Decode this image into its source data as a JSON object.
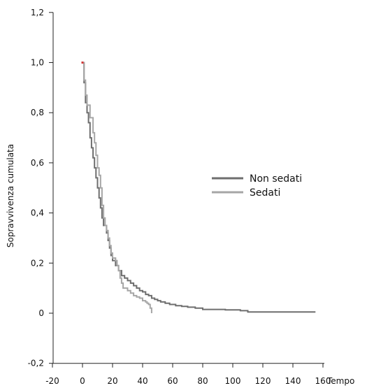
{
  "chart_data": {
    "type": "line",
    "title": "",
    "xlabel": "Tempo",
    "ylabel": "Sopravvivenza cumulata",
    "xlim": [
      -20,
      160
    ],
    "ylim": [
      -0.2,
      1.2
    ],
    "xticks": [
      "-20",
      "0",
      "20",
      "40",
      "60",
      "80",
      "100",
      "120",
      "140",
      "160"
    ],
    "yticks": [
      "-0,2",
      "0",
      "0,2",
      "0,4",
      "0,6",
      "0,8",
      "1,0",
      "1,2"
    ],
    "grid": false,
    "legend_position": "right",
    "series": [
      {
        "name": "Non sedati",
        "color": "#6e6e6e",
        "step": true,
        "points": [
          [
            0,
            1.0
          ],
          [
            1,
            0.92
          ],
          [
            2,
            0.84
          ],
          [
            3,
            0.8
          ],
          [
            4,
            0.76
          ],
          [
            5,
            0.7
          ],
          [
            6,
            0.66
          ],
          [
            7,
            0.62
          ],
          [
            8,
            0.58
          ],
          [
            9,
            0.54
          ],
          [
            10,
            0.5
          ],
          [
            11,
            0.46
          ],
          [
            12,
            0.42
          ],
          [
            13,
            0.38
          ],
          [
            14,
            0.35
          ],
          [
            16,
            0.32
          ],
          [
            17,
            0.29
          ],
          [
            18,
            0.26
          ],
          [
            19,
            0.23
          ],
          [
            20,
            0.21
          ],
          [
            22,
            0.19
          ],
          [
            24,
            0.17
          ],
          [
            26,
            0.15
          ],
          [
            28,
            0.14
          ],
          [
            30,
            0.13
          ],
          [
            32,
            0.12
          ],
          [
            34,
            0.11
          ],
          [
            36,
            0.1
          ],
          [
            38,
            0.09
          ],
          [
            40,
            0.085
          ],
          [
            42,
            0.075
          ],
          [
            44,
            0.07
          ],
          [
            46,
            0.06
          ],
          [
            48,
            0.055
          ],
          [
            50,
            0.05
          ],
          [
            52,
            0.045
          ],
          [
            55,
            0.04
          ],
          [
            58,
            0.035
          ],
          [
            62,
            0.03
          ],
          [
            66,
            0.027
          ],
          [
            70,
            0.024
          ],
          [
            75,
            0.02
          ],
          [
            80,
            0.015
          ],
          [
            95,
            0.013
          ],
          [
            105,
            0.01
          ],
          [
            110,
            0.005
          ],
          [
            120,
            0.005
          ],
          [
            140,
            0.005
          ],
          [
            155,
            0.005
          ]
        ]
      },
      {
        "name": "Sedati",
        "color": "#a6a6a6",
        "step": true,
        "points": [
          [
            0,
            1.0
          ],
          [
            1,
            0.93
          ],
          [
            2,
            0.87
          ],
          [
            3,
            0.83
          ],
          [
            5,
            0.78
          ],
          [
            7,
            0.72
          ],
          [
            8,
            0.68
          ],
          [
            9,
            0.63
          ],
          [
            10,
            0.58
          ],
          [
            11,
            0.55
          ],
          [
            12,
            0.5
          ],
          [
            13,
            0.43
          ],
          [
            14,
            0.38
          ],
          [
            15,
            0.35
          ],
          [
            16,
            0.33
          ],
          [
            17,
            0.3
          ],
          [
            18,
            0.27
          ],
          [
            19,
            0.24
          ],
          [
            20,
            0.22
          ],
          [
            22,
            0.21
          ],
          [
            23,
            0.19
          ],
          [
            24,
            0.17
          ],
          [
            25,
            0.14
          ],
          [
            26,
            0.12
          ],
          [
            27,
            0.1
          ],
          [
            30,
            0.09
          ],
          [
            32,
            0.08
          ],
          [
            34,
            0.07
          ],
          [
            36,
            0.065
          ],
          [
            38,
            0.06
          ],
          [
            40,
            0.05
          ],
          [
            42,
            0.045
          ],
          [
            43,
            0.04
          ],
          [
            44,
            0.035
          ],
          [
            45,
            0.02
          ],
          [
            46,
            0.0
          ]
        ]
      }
    ],
    "start_marker_color": "#d33a3a"
  }
}
